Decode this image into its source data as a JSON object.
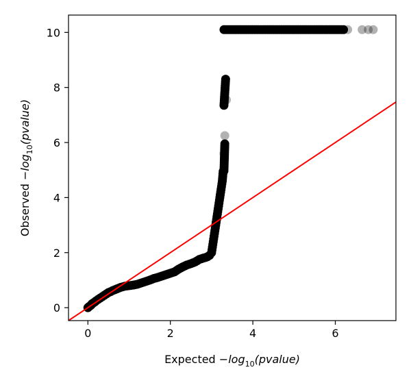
{
  "chart_data": {
    "type": "scatter",
    "title": "",
    "xlabel": {
      "prefix": "Expected ",
      "minus": "−",
      "log": "log",
      "sub": "10",
      "arg": "(pvalue)"
    },
    "ylabel": {
      "prefix": "Observed ",
      "minus": "−",
      "log": "log",
      "sub": "10",
      "arg": "(pvalue)"
    },
    "xlim": [
      -0.47,
      7.47
    ],
    "ylim": [
      -0.47,
      10.63
    ],
    "xticks": [
      0,
      2,
      4,
      6
    ],
    "yticks": [
      0,
      2,
      4,
      6,
      8,
      10
    ],
    "grid": false,
    "colors": {
      "points": "#000000",
      "reference_line": "#ff0000"
    },
    "series": [
      {
        "kind": "points",
        "points": [
          [
            0.0,
            0.0
          ],
          [
            0.02,
            0.03
          ],
          [
            0.05,
            0.06
          ],
          [
            0.08,
            0.1
          ],
          [
            0.1,
            0.14
          ],
          [
            0.13,
            0.17
          ],
          [
            0.17,
            0.21
          ],
          [
            0.2,
            0.25
          ],
          [
            0.25,
            0.3
          ],
          [
            0.3,
            0.35
          ],
          [
            0.35,
            0.4
          ],
          [
            0.4,
            0.45
          ],
          [
            0.45,
            0.5
          ],
          [
            0.5,
            0.55
          ],
          [
            0.55,
            0.58
          ],
          [
            0.6,
            0.62
          ],
          [
            0.7,
            0.68
          ],
          [
            0.8,
            0.74
          ],
          [
            0.9,
            0.78
          ],
          [
            1.0,
            0.8
          ],
          [
            1.1,
            0.82
          ],
          [
            1.2,
            0.85
          ],
          [
            1.3,
            0.9
          ],
          [
            1.4,
            0.95
          ],
          [
            1.5,
            1.0
          ],
          [
            1.6,
            1.06
          ],
          [
            1.7,
            1.1
          ],
          [
            1.8,
            1.15
          ],
          [
            1.9,
            1.2
          ],
          [
            2.0,
            1.25
          ],
          [
            2.1,
            1.3
          ],
          [
            2.2,
            1.4
          ],
          [
            2.3,
            1.48
          ],
          [
            2.4,
            1.55
          ],
          [
            2.5,
            1.6
          ],
          [
            2.6,
            1.66
          ],
          [
            2.7,
            1.75
          ],
          [
            2.8,
            1.8
          ],
          [
            2.85,
            1.82
          ],
          [
            2.9,
            1.85
          ],
          [
            2.95,
            1.9
          ],
          [
            3.0,
            2.0
          ],
          [
            3.02,
            2.2
          ],
          [
            3.04,
            2.4
          ],
          [
            3.06,
            2.6
          ],
          [
            3.08,
            2.8
          ],
          [
            3.1,
            3.0
          ],
          [
            3.12,
            3.2
          ],
          [
            3.14,
            3.4
          ],
          [
            3.16,
            3.6
          ],
          [
            3.18,
            3.8
          ],
          [
            3.2,
            4.0
          ],
          [
            3.22,
            4.2
          ],
          [
            3.24,
            4.4
          ],
          [
            3.26,
            4.6
          ],
          [
            3.28,
            4.95
          ],
          [
            3.3,
            4.97
          ],
          [
            3.32,
            5.95
          ],
          [
            3.3,
            7.35
          ],
          [
            3.34,
            8.3
          ],
          [
            3.3,
            10.1
          ],
          [
            3.4,
            10.1
          ],
          [
            3.6,
            10.1
          ],
          [
            3.8,
            10.1
          ],
          [
            4.0,
            10.1
          ],
          [
            4.2,
            10.1
          ],
          [
            4.4,
            10.1
          ],
          [
            4.6,
            10.1
          ],
          [
            4.8,
            10.1
          ],
          [
            5.0,
            10.1
          ],
          [
            5.2,
            10.1
          ],
          [
            5.4,
            10.1
          ],
          [
            5.6,
            10.1
          ],
          [
            5.8,
            10.1
          ],
          [
            6.0,
            10.1
          ],
          [
            6.1,
            10.1
          ],
          [
            6.2,
            10.1
          ]
        ]
      },
      {
        "kind": "faded_points",
        "points": [
          [
            3.32,
            6.25
          ],
          [
            3.3,
            5.6
          ],
          [
            3.36,
            7.55
          ],
          [
            6.3,
            10.1
          ],
          [
            6.65,
            10.1
          ],
          [
            6.8,
            10.1
          ],
          [
            6.92,
            10.1
          ]
        ]
      },
      {
        "kind": "reference_line",
        "from": [
          -0.47,
          -0.47
        ],
        "to": [
          7.47,
          7.47
        ]
      }
    ]
  }
}
